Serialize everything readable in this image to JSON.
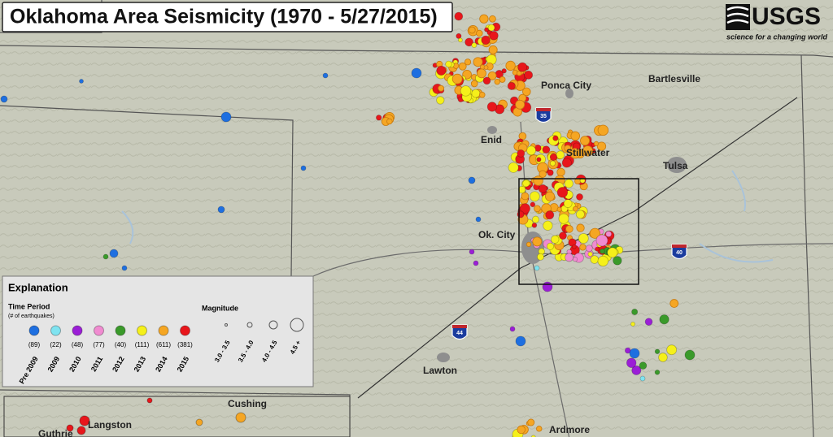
{
  "header": {
    "title": "Oklahoma Area Seismicity (1970 - 5/27/2015)",
    "logo": "USGS",
    "tagline": "science for a changing world"
  },
  "cities": [
    {
      "label": "Ponca City"
    },
    {
      "label": "Bartlesville"
    },
    {
      "label": "Enid"
    },
    {
      "label": "Stillwater"
    },
    {
      "label": "Tulsa"
    },
    {
      "label": "Ok. City"
    },
    {
      "label": "Lawton"
    },
    {
      "label": "Ardmore"
    }
  ],
  "highways": [
    {
      "label": "35"
    },
    {
      "label": "40"
    },
    {
      "label": "44"
    }
  ],
  "legend": {
    "title": "Explanation",
    "time_title": "Time Period",
    "time_subtitle": "(# of earthquakes)",
    "periods": [
      {
        "label": "Pre 2009",
        "count": "(89)",
        "color": "#1e6fe0"
      },
      {
        "label": "2009",
        "count": "(22)",
        "color": "#7fe3f0"
      },
      {
        "label": "2010",
        "count": "(48)",
        "color": "#9b1ed6"
      },
      {
        "label": "2011",
        "count": "(77)",
        "color": "#f08bd0"
      },
      {
        "label": "2012",
        "count": "(40)",
        "color": "#3a9a2a"
      },
      {
        "label": "2013",
        "count": "(111)",
        "color": "#f5f01a"
      },
      {
        "label": "2014",
        "count": "(611)",
        "color": "#f5a623"
      },
      {
        "label": "2015",
        "count": "(381)",
        "color": "#e8161b"
      }
    ],
    "magnitude_title": "Magnitude",
    "magnitudes": [
      {
        "label": "3.0 - 3.5"
      },
      {
        "label": "3.5 - 4.0"
      },
      {
        "label": "4.0 - 4.5"
      },
      {
        "label": "4.5 +"
      }
    ]
  },
  "inset": {
    "cities": [
      {
        "label": "Cushing"
      },
      {
        "label": "Langston"
      },
      {
        "label": "Guthrie"
      }
    ]
  }
}
